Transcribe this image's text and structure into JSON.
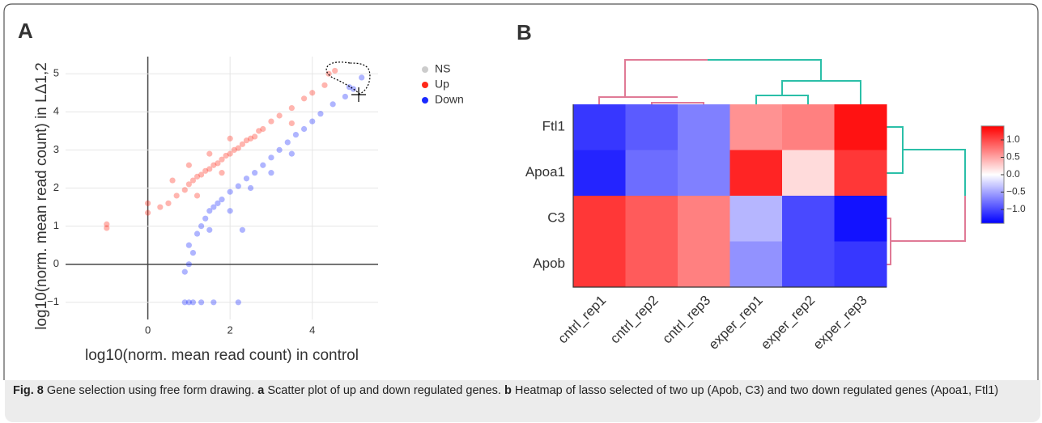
{
  "panel_labels": [
    "A",
    "B"
  ],
  "caption": {
    "label": "Fig. 8",
    "parts": [
      {
        "text": "Gene selection using free form drawing. ",
        "bold": false
      },
      {
        "text": "a",
        "bold": true
      },
      {
        "text": " Scatter plot of up and down regulated genes. ",
        "bold": false
      },
      {
        "text": "b",
        "bold": true
      },
      {
        "text": " Heatmap of lasso selected of two up (Apob, C3) and two down regulated genes (Apoa1, Ftl1)",
        "bold": false
      }
    ]
  },
  "chart_data": [
    {
      "type": "scatter",
      "x_label": "log10(norm. mean read count) in control",
      "y_label": "log10(norm. mean read count) in LΔ1,2",
      "xlim": [
        -2,
        5.6
      ],
      "xticks": [
        0,
        2,
        4
      ],
      "ylim": [
        -1.45,
        5.45
      ],
      "yticks": [
        {
          "value": -1,
          "label": "−1"
        },
        0,
        1,
        2,
        3,
        4,
        5
      ],
      "grid": true,
      "series": [
        {
          "name": "NS",
          "color": "#cccccc",
          "x": [],
          "y": []
        },
        {
          "name": "Up",
          "color": "#ff2a1a",
          "x": [
            -1.0,
            -1.0,
            0.0,
            0.0,
            0.3,
            0.5,
            0.7,
            0.9,
            1.0,
            1.1,
            1.2,
            1.3,
            1.4,
            1.5,
            1.6,
            1.7,
            1.8,
            1.9,
            2.0,
            2.1,
            2.2,
            2.3,
            2.4,
            2.5,
            2.6,
            2.7,
            2.8,
            3.0,
            3.2,
            3.5,
            3.8,
            4.0,
            4.3,
            1.0,
            1.5,
            2.0,
            1.2,
            1.8,
            0.6,
            3.5,
            4.4,
            4.55
          ],
          "y": [
            1.05,
            0.95,
            1.35,
            1.6,
            1.5,
            1.6,
            1.8,
            1.95,
            2.1,
            2.2,
            2.3,
            2.35,
            2.45,
            2.5,
            2.6,
            2.65,
            2.75,
            2.85,
            2.9,
            3.0,
            3.05,
            3.15,
            3.25,
            3.3,
            3.35,
            3.5,
            3.55,
            3.75,
            3.9,
            4.1,
            4.35,
            4.5,
            4.7,
            2.6,
            2.9,
            3.3,
            1.8,
            2.4,
            2.2,
            3.7,
            5.0,
            5.08
          ]
        },
        {
          "name": "Down",
          "color": "#1a2aff",
          "x": [
            0.9,
            1.0,
            1.1,
            1.3,
            1.6,
            2.2,
            0.9,
            1.0,
            1.0,
            1.1,
            1.2,
            1.3,
            1.4,
            1.5,
            1.6,
            1.7,
            1.8,
            2.0,
            2.2,
            2.4,
            2.6,
            2.8,
            3.0,
            3.2,
            3.4,
            3.6,
            3.8,
            4.0,
            4.2,
            4.5,
            4.8,
            5.0,
            1.5,
            2.0,
            2.5,
            3.0,
            3.5,
            2.3,
            4.9,
            5.2
          ],
          "y": [
            -1.0,
            -1.0,
            -1.0,
            -1.0,
            -1.0,
            -1.0,
            -0.2,
            0.0,
            0.5,
            0.3,
            0.8,
            1.0,
            1.2,
            1.4,
            1.5,
            1.6,
            1.7,
            1.9,
            2.05,
            2.25,
            2.4,
            2.6,
            2.8,
            3.0,
            3.2,
            3.4,
            3.55,
            3.75,
            3.95,
            4.2,
            4.4,
            4.6,
            0.9,
            1.4,
            2.0,
            2.4,
            2.9,
            0.9,
            4.65,
            4.9
          ]
        }
      ]
    },
    {
      "type": "heatmap",
      "x": [
        "cntrl_rep1",
        "cntrl_rep2",
        "cntrl_rep3",
        "exper_rep1",
        "exper_rep2",
        "exper_rep3"
      ],
      "y": [
        "Ftl1",
        "Apoa1",
        "C3",
        "Apob"
      ],
      "values": [
        [
          -1.1,
          -0.9,
          -0.7,
          0.6,
          0.7,
          1.3
        ],
        [
          -1.2,
          -0.8,
          -0.7,
          1.2,
          0.2,
          1.1
        ],
        [
          1.1,
          0.9,
          0.7,
          -0.4,
          -1.0,
          -1.3
        ],
        [
          1.1,
          0.9,
          0.7,
          -0.6,
          -1.0,
          -1.1
        ]
      ],
      "zlim": [
        -1.4,
        1.4
      ],
      "zticks": [
        {
          "value": 1,
          "label": "1.0"
        },
        {
          "value": 0.5,
          "label": "0.5"
        },
        {
          "value": 0,
          "label": "0.0"
        },
        {
          "value": -0.5,
          "label": "−0.5"
        },
        {
          "value": -1,
          "label": "−1.0"
        }
      ],
      "colors": [
        "#0000ff",
        "#ffffff",
        "#ff0000"
      ]
    }
  ]
}
